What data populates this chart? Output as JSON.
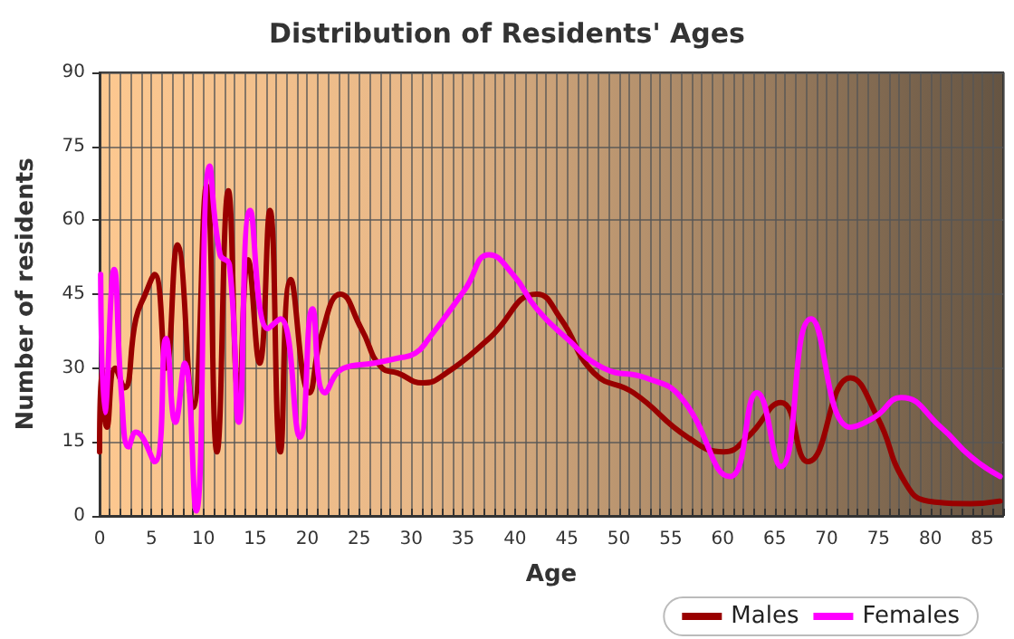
{
  "chart_data": {
    "type": "line",
    "title": "Distribution of Residents' Ages",
    "xlabel": "Age",
    "ylabel": "Number of residents",
    "xlim": [
      0,
      87
    ],
    "xticks": [
      0,
      5,
      10,
      15,
      20,
      25,
      30,
      35,
      40,
      45,
      50,
      55,
      60,
      65,
      70,
      75,
      80,
      85
    ],
    "ylim": [
      0,
      90
    ],
    "yticks": [
      0,
      15,
      30,
      45,
      60,
      75,
      90
    ],
    "grid": true,
    "legend": "bottom right",
    "marker": "none",
    "line_style": "solid",
    "series": [
      {
        "name": "Males",
        "color": "#990000",
        "x": [
          0,
          0.2,
          0.7,
          1.5,
          2.4,
          3.5,
          4.4,
          5.3,
          6.4,
          7.5,
          9,
          10.3,
          11.3,
          12.4,
          13.4,
          14.3,
          15.4,
          16.4,
          17.4,
          18.4,
          20.2,
          21.4,
          23.2,
          25.2,
          27.2,
          28.7,
          31.1,
          33.4,
          37.5,
          42.1,
          44.4,
          47.6,
          51.4,
          56.6,
          60.1,
          62.4,
          65.6,
          68.2,
          72.3,
          74.9,
          77.5,
          79.8,
          83.9,
          86.7
        ],
        "values": [
          13,
          30,
          18,
          30,
          26,
          40,
          45,
          49,
          30,
          55,
          22,
          67,
          13,
          66,
          24,
          52,
          31,
          62,
          13,
          48,
          25,
          37,
          45,
          38,
          30,
          29,
          27,
          29,
          36,
          45,
          40,
          29,
          25,
          16,
          13,
          16,
          23,
          11,
          28,
          20,
          7,
          3,
          2.5,
          3
        ]
      },
      {
        "name": "Females",
        "color": "#ff00ff",
        "x": [
          0.1,
          0.5,
          1.4,
          2.1,
          2.8,
          3.5,
          5.3,
          6.4,
          7.3,
          8.2,
          9.3,
          10.6,
          11.6,
          12.5,
          13.4,
          14.5,
          16.2,
          17.4,
          19.3,
          20.5,
          21.7,
          23.5,
          26.4,
          28.7,
          30.4,
          31.7,
          35.2,
          37.5,
          39.8,
          42.1,
          45,
          48.5,
          52.6,
          56,
          60.7,
          63.3,
          65.6,
          68.5,
          72.3,
          74.6,
          77.2,
          81,
          83.9,
          86.7
        ],
        "values": [
          49,
          21,
          50,
          25,
          14,
          17,
          11,
          36,
          19,
          31,
          1,
          71,
          53,
          51,
          19,
          62,
          38,
          40,
          16,
          42,
          25,
          30,
          31,
          32,
          33,
          36,
          46,
          53,
          49,
          42,
          36,
          30,
          28,
          24,
          8,
          25,
          10,
          40,
          18,
          20,
          24,
          18,
          12,
          8
        ]
      }
    ]
  }
}
